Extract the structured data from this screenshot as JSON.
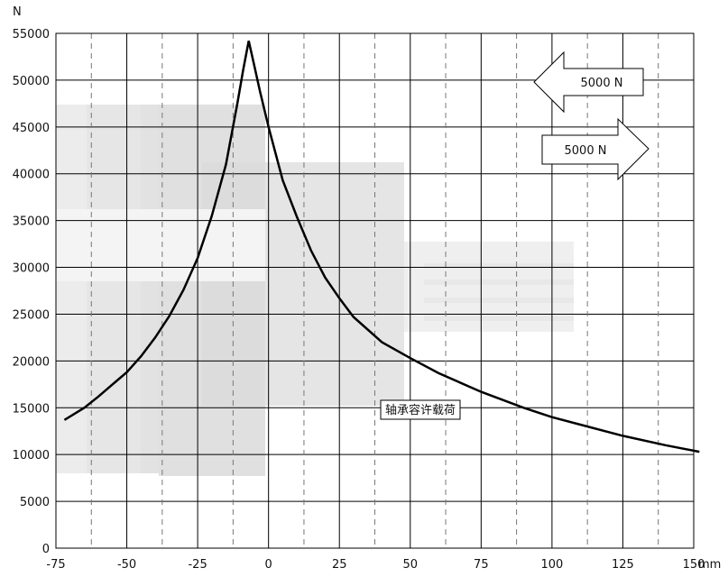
{
  "chart_data": {
    "type": "line",
    "title": "",
    "xlabel": "mm",
    "ylabel": "N",
    "xlim": [
      -75,
      150
    ],
    "ylim": [
      0,
      55000
    ],
    "x_ticks": [
      -75,
      -50,
      -25,
      0,
      25,
      50,
      75,
      100,
      125,
      150
    ],
    "y_ticks": [
      0,
      5000,
      10000,
      15000,
      20000,
      25000,
      30000,
      35000,
      40000,
      45000,
      50000,
      55000
    ],
    "x_tick_labels": [
      "-75",
      "-50",
      "-25",
      "0",
      "25",
      "50",
      "75",
      "100",
      "125",
      "150"
    ],
    "y_tick_labels": [
      "0",
      "5000",
      "10000",
      "15000",
      "20000",
      "25000",
      "30000",
      "35000",
      "40000",
      "45000",
      "50000",
      "55000"
    ],
    "grid": true,
    "series": [
      {
        "name": "",
        "color": "#000000",
        "x": [
          -72,
          -65,
          -60,
          -55,
          -50,
          -45,
          -40,
          -35,
          -30,
          -25,
          -20,
          -15,
          -11,
          -9,
          -7,
          -5,
          -3,
          0,
          5,
          10,
          15,
          20,
          25,
          30,
          40,
          50,
          60,
          75,
          90,
          100,
          110,
          125,
          140,
          152
        ],
        "y": [
          13700,
          15000,
          16200,
          17500,
          18800,
          20500,
          22500,
          24800,
          27600,
          31000,
          35500,
          41000,
          47500,
          51000,
          54200,
          51500,
          48800,
          45000,
          39300,
          35400,
          31800,
          28900,
          26700,
          24700,
          22000,
          20300,
          18700,
          16700,
          15000,
          14000,
          13200,
          12000,
          11000,
          10300
        ]
      }
    ],
    "annotations": [
      {
        "text": "轴承容许载荷",
        "x": 75,
        "y": 14800
      },
      {
        "text": "5000 N",
        "direction": "left"
      },
      {
        "text": "5000 N",
        "direction": "right"
      }
    ]
  }
}
